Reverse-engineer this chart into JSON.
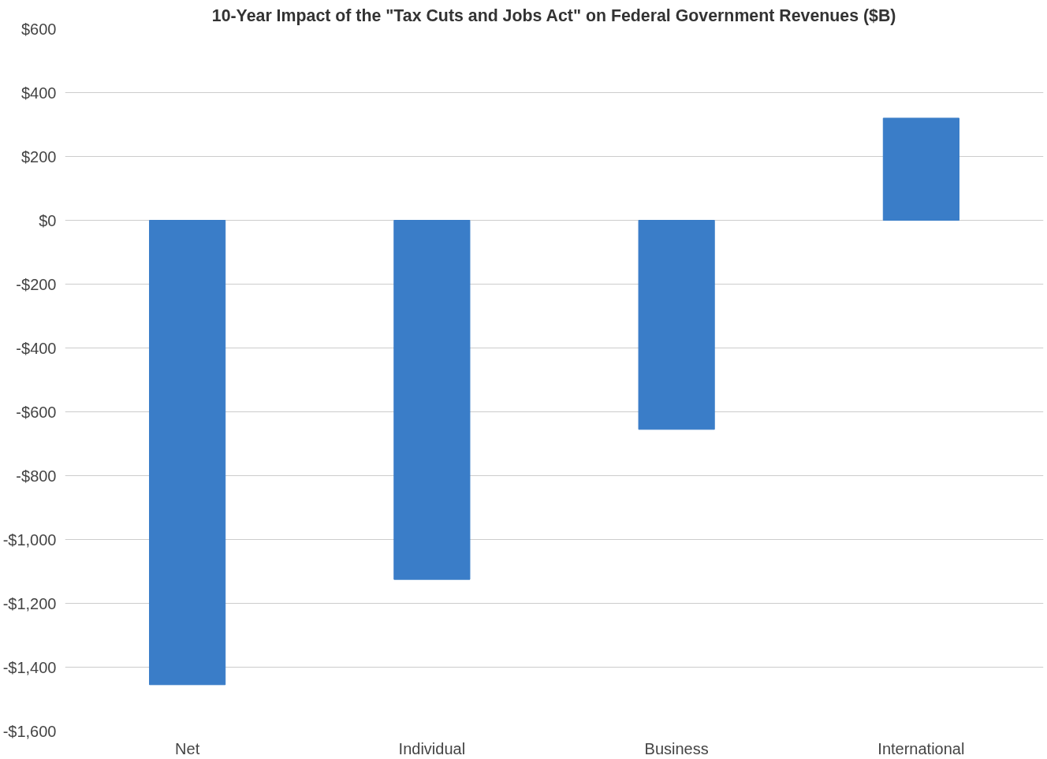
{
  "chart_data": {
    "type": "bar",
    "title": "10-Year Impact of the \"Tax Cuts and Jobs Act\" on Federal Government Revenues ($B)",
    "categories": [
      "Net",
      "Individual",
      "Business",
      "International"
    ],
    "values": [
      -1455,
      -1125,
      -655,
      320
    ],
    "color": "#3a7dc8",
    "ylim": [
      -1600,
      600
    ],
    "yticks": [
      {
        "value": -1600,
        "label": "-$1,600"
      },
      {
        "value": -1400,
        "label": "-$1,400"
      },
      {
        "value": -1200,
        "label": "-$1,200"
      },
      {
        "value": -1000,
        "label": "-$1,000"
      },
      {
        "value": -800,
        "label": "-$800"
      },
      {
        "value": -600,
        "label": "-$600"
      },
      {
        "value": -400,
        "label": "-$400"
      },
      {
        "value": -200,
        "label": "-$200"
      },
      {
        "value": 0,
        "label": "$0"
      },
      {
        "value": 200,
        "label": "$200"
      },
      {
        "value": 400,
        "label": "$400"
      },
      {
        "value": 600,
        "label": "$600"
      }
    ],
    "grid": "y"
  }
}
